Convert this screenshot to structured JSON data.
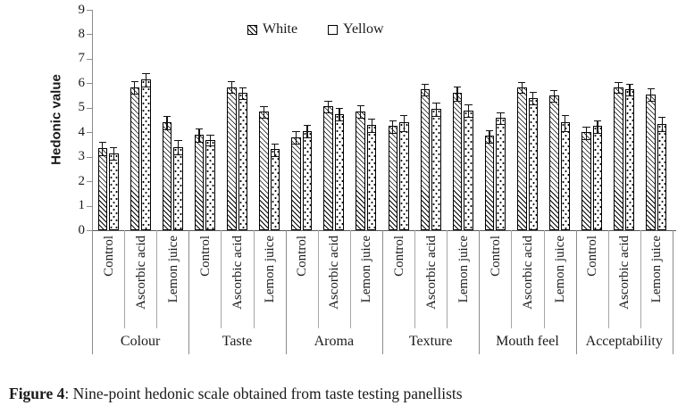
{
  "figure": {
    "caption_label": "Figure 4",
    "caption_text": ": Nine-point hedonic scale obtained from taste testing panellists"
  },
  "chart_data": {
    "type": "bar",
    "title": "",
    "xlabel": "",
    "ylabel": "Hedonic value",
    "ylim": [
      0,
      9
    ],
    "yticks": [
      0,
      1,
      2,
      3,
      4,
      5,
      6,
      7,
      8,
      9
    ],
    "grid": false,
    "legend_position": "top-center",
    "groups": [
      "Colour",
      "Taste",
      "Aroma",
      "Texture",
      "Mouth feel",
      "Acceptability"
    ],
    "treatments": [
      "Control",
      "Ascorbic acid",
      "Lemon juice"
    ],
    "series": [
      {
        "name": "White",
        "pattern": "diagonal-hatch",
        "values": [
          [
            3.35,
            5.85,
            4.4
          ],
          [
            3.9,
            5.85,
            4.85
          ],
          [
            3.8,
            5.05,
            4.85
          ],
          [
            4.25,
            5.75,
            5.6
          ],
          [
            3.85,
            5.85,
            5.5
          ],
          [
            4.0,
            5.85,
            5.55
          ]
        ],
        "errors": [
          [
            0.25,
            0.25,
            0.25
          ],
          [
            0.27,
            0.22,
            0.21
          ],
          [
            0.23,
            0.22,
            0.24
          ],
          [
            0.24,
            0.22,
            0.27
          ],
          [
            0.24,
            0.21,
            0.21
          ],
          [
            0.24,
            0.21,
            0.25
          ]
        ]
      },
      {
        "name": "Yellow",
        "pattern": "dotted",
        "values": [
          [
            3.15,
            6.15,
            3.4
          ],
          [
            3.7,
            5.6,
            3.3
          ],
          [
            4.05,
            4.75,
            4.3
          ],
          [
            4.4,
            4.95,
            4.9
          ],
          [
            4.6,
            5.4,
            4.4
          ],
          [
            4.25,
            5.75,
            4.35
          ]
        ],
        "errors": [
          [
            0.25,
            0.25,
            0.27
          ],
          [
            0.2,
            0.22,
            0.25
          ],
          [
            0.24,
            0.24,
            0.25
          ],
          [
            0.3,
            0.25,
            0.25
          ],
          [
            0.22,
            0.24,
            0.3
          ],
          [
            0.24,
            0.22,
            0.28
          ]
        ]
      }
    ]
  }
}
